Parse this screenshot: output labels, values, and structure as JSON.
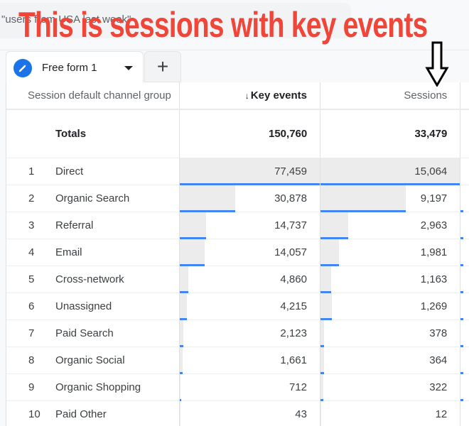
{
  "search": {
    "text": "\"users from USA last week\""
  },
  "annotation": {
    "text": "This is sessions with key events"
  },
  "tabs": [
    {
      "label": "Free form 1",
      "icon": "pencil-icon",
      "active": true
    }
  ],
  "add_tab": {
    "label": "+"
  },
  "table": {
    "headers": {
      "dimension": "Session default channel group",
      "metric1": "Key events",
      "metric1_sort": "↓",
      "metric2": "Sessions"
    },
    "totals": {
      "label": "Totals",
      "key_events": "150,760",
      "sessions": "33,479"
    },
    "rows": [
      {
        "idx": "1",
        "channel": "Direct",
        "key_events": "77,459",
        "sessions": "15,064",
        "ke_pct": 100,
        "s_pct": 100
      },
      {
        "idx": "2",
        "channel": "Organic Search",
        "key_events": "30,878",
        "sessions": "9,197",
        "ke_pct": 39.9,
        "s_pct": 61.1
      },
      {
        "idx": "3",
        "channel": "Referral",
        "key_events": "14,737",
        "sessions": "2,963",
        "ke_pct": 19.0,
        "s_pct": 19.7
      },
      {
        "idx": "4",
        "channel": "Email",
        "key_events": "14,057",
        "sessions": "1,981",
        "ke_pct": 18.1,
        "s_pct": 13.2
      },
      {
        "idx": "5",
        "channel": "Cross-network",
        "key_events": "4,860",
        "sessions": "1,163",
        "ke_pct": 6.3,
        "s_pct": 7.7
      },
      {
        "idx": "6",
        "channel": "Unassigned",
        "key_events": "4,215",
        "sessions": "1,269",
        "ke_pct": 5.4,
        "s_pct": 8.4
      },
      {
        "idx": "7",
        "channel": "Paid Search",
        "key_events": "2,123",
        "sessions": "378",
        "ke_pct": 2.7,
        "s_pct": 2.5
      },
      {
        "idx": "8",
        "channel": "Organic Social",
        "key_events": "1,661",
        "sessions": "364",
        "ke_pct": 2.1,
        "s_pct": 2.4
      },
      {
        "idx": "9",
        "channel": "Organic Shopping",
        "key_events": "712",
        "sessions": "322",
        "ke_pct": 0.9,
        "s_pct": 2.1
      },
      {
        "idx": "10",
        "channel": "Paid Other",
        "key_events": "43",
        "sessions": "12",
        "ke_pct": 0.1,
        "s_pct": 0.1
      }
    ]
  },
  "colors": {
    "accent": "#4285f4",
    "annotation": "#f0463a",
    "bar_bg": "#ececec"
  }
}
